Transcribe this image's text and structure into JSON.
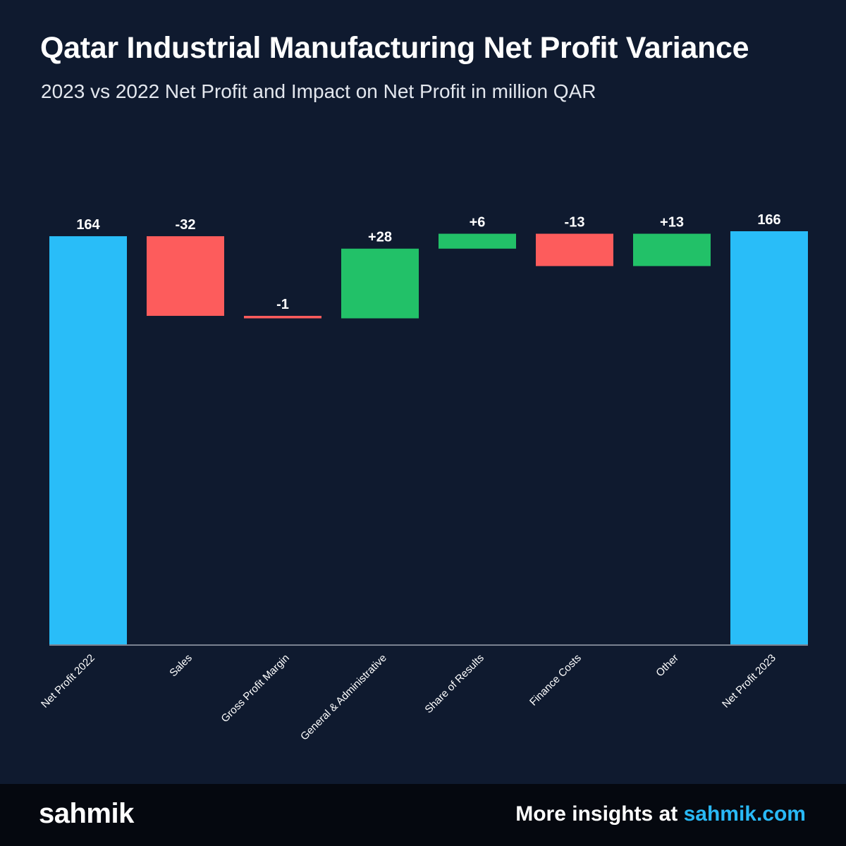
{
  "header": {
    "title": "Qatar Industrial Manufacturing Net Profit Variance",
    "subtitle": "2023 vs 2022 Net Profit and Impact on Net Profit in million QAR"
  },
  "footer": {
    "logo_text": "sahmik",
    "insights_prefix": "More insights at ",
    "insights_link": "sahmik.com"
  },
  "colors": {
    "background": "#0f1a2f",
    "total": "#29bdf8",
    "increase": "#22c168",
    "decrease": "#fd5c5c",
    "baseline": "#7a8291",
    "label": "#ffffff",
    "link": "#29b9f6"
  },
  "chart_data": {
    "type": "waterfall",
    "title": "Qatar Industrial Manufacturing Net Profit Variance",
    "subtitle": "2023 vs 2022 Net Profit and Impact on Net Profit in million QAR",
    "categories": [
      "Net Profit 2022",
      "Sales",
      "Gross Profit Margin",
      "General & Administrative",
      "Share of Results",
      "Finance Costs",
      "Other",
      "Net Profit 2023"
    ],
    "values": [
      164,
      -32,
      -1,
      28,
      6,
      -13,
      13,
      166
    ],
    "labels": [
      "164",
      "-32",
      "-1",
      "+28",
      "+6",
      "-13",
      "+13",
      "166"
    ],
    "kinds": [
      "total",
      "decrease",
      "decrease",
      "increase",
      "increase",
      "decrease",
      "increase",
      "total"
    ],
    "ylim": [
      0,
      166
    ],
    "grid": false,
    "legend": "none"
  }
}
